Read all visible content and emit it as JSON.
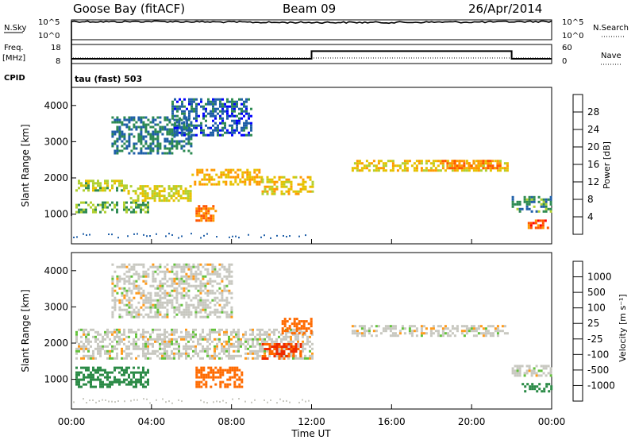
{
  "header": {
    "station": "Goose Bay (fitACF)",
    "beam": "Beam 09",
    "date": "26/Apr/2014"
  },
  "panels": {
    "nsky_label": "N.Sky",
    "nsearch_label": "N.Search",
    "nsky_ticks": [
      "10^5",
      "10^0"
    ],
    "nsearch_ticks": [
      "10^5",
      "10^0"
    ],
    "freq_label": "Freq.",
    "freq_unit": "[MHz]",
    "freq_ticks": [
      "18",
      "8"
    ],
    "nave_label": "Nave",
    "nave_ticks": [
      "60",
      "0"
    ],
    "cpid_label": "CPID",
    "cpid_value": "tau (fast) 503"
  },
  "colorbars": {
    "power": {
      "label": "Power [dB]",
      "ticks": [
        "28",
        "24",
        "20",
        "16",
        "12",
        "8",
        "4"
      ],
      "colors": [
        "#ff0000",
        "#ff5500",
        "#ff9900",
        "#e6c200",
        "#b0d030",
        "#2d8a52",
        "#1f5fa8",
        "#0000ff"
      ]
    },
    "velocity": {
      "label": "Velocity [m s⁻¹]",
      "ticks": [
        "1000",
        "500",
        "100",
        "25",
        "-25",
        "-100",
        "-500",
        "-1000"
      ],
      "colors": [
        "#1f44b8",
        "#2a6db5",
        "#2a8a46",
        "#62c23a",
        "#c8c8c0",
        "#ff9a1a",
        "#ff6a00",
        "#ee2a00",
        "#dd0000"
      ]
    }
  },
  "chart_data": [
    {
      "type": "line",
      "title": "N.Sky",
      "x": [
        "00:00",
        "02:00",
        "04:00",
        "06:00",
        "08:00",
        "10:00",
        "12:00",
        "14:00",
        "16:00",
        "18:00",
        "20:00",
        "22:00",
        "24:00"
      ],
      "series": [
        {
          "name": "N.Sky",
          "values": [
            5.0,
            4.9,
            5.0,
            4.9,
            4.8,
            4.7,
            4.7,
            4.7,
            4.7,
            4.8,
            4.8,
            4.9,
            5.0
          ]
        }
      ],
      "ylim": [
        0,
        5
      ]
    },
    {
      "type": "line",
      "title": "Freq. [MHz]",
      "x": [
        "00:00",
        "12:00",
        "12:00",
        "22:00",
        "22:00",
        "24:00"
      ],
      "series": [
        {
          "name": "Freq.",
          "values": [
            10.5,
            10.5,
            14.5,
            14.5,
            10.5,
            10.5
          ]
        }
      ],
      "ylim": [
        8,
        18
      ]
    },
    {
      "type": "heatmap",
      "title": "Power [dB]",
      "xlabel": "Time UT",
      "ylabel": "Slant Range [km]",
      "xticks": [
        "00:00",
        "04:00",
        "08:00",
        "12:00",
        "16:00",
        "20:00",
        "00:00"
      ],
      "yticks": [
        1000,
        2000,
        3000,
        4000
      ],
      "xlim": [
        0,
        24
      ],
      "ylim": [
        180,
        4500
      ],
      "scale": [
        4,
        30
      ],
      "regions": [
        {
          "t0": 0.2,
          "t1": 3.8,
          "r0": 1050,
          "r1": 1350,
          "value": 12
        },
        {
          "t0": 0.2,
          "t1": 2.8,
          "r0": 1650,
          "r1": 1950,
          "value": 14
        },
        {
          "t0": 2.8,
          "t1": 6.0,
          "r0": 1350,
          "r1": 1800,
          "value": 16
        },
        {
          "t0": 6.0,
          "t1": 9.5,
          "r0": 1800,
          "r1": 2250,
          "value": 20
        },
        {
          "t0": 9.5,
          "t1": 12.0,
          "r0": 1550,
          "r1": 2050,
          "value": 18
        },
        {
          "t0": 6.2,
          "t1": 7.2,
          "r0": 850,
          "r1": 1250,
          "value": 24
        },
        {
          "t0": 2.0,
          "t1": 6.0,
          "r0": 2700,
          "r1": 3700,
          "value": 8
        },
        {
          "t0": 5.0,
          "t1": 9.0,
          "r0": 3200,
          "r1": 4200,
          "value": 6
        },
        {
          "t0": 14.0,
          "t1": 21.8,
          "r0": 2200,
          "r1": 2500,
          "value": 18
        },
        {
          "t0": 18.5,
          "t1": 21.5,
          "r0": 2300,
          "r1": 2500,
          "value": 24
        },
        {
          "t0": 22.0,
          "t1": 24.0,
          "r0": 1050,
          "r1": 1500,
          "value": 10
        },
        {
          "t0": 22.8,
          "t1": 23.8,
          "r0": 650,
          "r1": 850,
          "value": 26
        }
      ]
    },
    {
      "type": "heatmap",
      "title": "Velocity [m s^-1]",
      "xlabel": "Time UT",
      "ylabel": "Slant Range [km]",
      "xticks": [
        "00:00",
        "04:00",
        "08:00",
        "12:00",
        "16:00",
        "20:00",
        "00:00"
      ],
      "yticks": [
        1000,
        2000,
        3000,
        4000
      ],
      "xlim": [
        0,
        24
      ],
      "ylim": [
        180,
        4500
      ],
      "scale": [
        -1000,
        1000
      ],
      "regions": [
        {
          "t0": 0.2,
          "t1": 3.8,
          "r0": 800,
          "r1": 1350,
          "value": 150
        },
        {
          "t0": 0.2,
          "t1": 12.0,
          "r0": 1550,
          "r1": 2400,
          "value": 0
        },
        {
          "t0": 6.2,
          "t1": 8.5,
          "r0": 800,
          "r1": 1350,
          "value": -300
        },
        {
          "t0": 9.5,
          "t1": 11.5,
          "r0": 1600,
          "r1": 2000,
          "value": -500
        },
        {
          "t0": 10.5,
          "t1": 12.0,
          "r0": 2300,
          "r1": 2700,
          "value": -400
        },
        {
          "t0": 2.0,
          "t1": 8.0,
          "r0": 2700,
          "r1": 4200,
          "value": 0
        },
        {
          "t0": 14.0,
          "t1": 21.8,
          "r0": 2200,
          "r1": 2500,
          "value": 0
        },
        {
          "t0": 22.0,
          "t1": 24.0,
          "r0": 1100,
          "r1": 1400,
          "value": 0
        },
        {
          "t0": 22.5,
          "t1": 24.0,
          "r0": 650,
          "r1": 900,
          "value": 200
        }
      ]
    }
  ]
}
